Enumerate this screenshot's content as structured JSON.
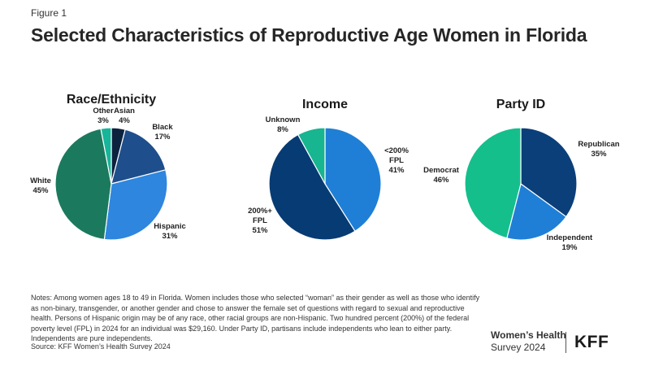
{
  "figure_label": "Figure 1",
  "title": "Selected Characteristics of Reproductive Age Women in Florida",
  "chart_data": [
    {
      "type": "pie",
      "title": "Race/Ethnicity",
      "slices": [
        {
          "name": "Asian",
          "value": 4,
          "label": "4%",
          "color": "#0c2340"
        },
        {
          "name": "Black",
          "value": 17,
          "label": "17%",
          "color": "#1f4e8c"
        },
        {
          "name": "Hispanic",
          "value": 31,
          "label": "31%",
          "color": "#2e86de"
        },
        {
          "name": "White",
          "value": 45,
          "label": "45%",
          "color": "#1b7a5e"
        },
        {
          "name": "Other",
          "value": 3,
          "label": "3%",
          "color": "#17b59a"
        }
      ]
    },
    {
      "type": "pie",
      "title": "Income",
      "slices": [
        {
          "name": "<200% FPL",
          "lines": [
            "<200%",
            "FPL"
          ],
          "value": 41,
          "label": "41%",
          "color": "#1f7fd6"
        },
        {
          "name": "200%+ FPL",
          "lines": [
            "200%+",
            "FPL"
          ],
          "value": 51,
          "label": "51%",
          "color": "#073b73"
        },
        {
          "name": "Unknown",
          "value": 8,
          "label": "8%",
          "color": "#17b590"
        }
      ]
    },
    {
      "type": "pie",
      "title": "Party ID",
      "slices": [
        {
          "name": "Republican",
          "value": 35,
          "label": "35%",
          "color": "#0b3f7a"
        },
        {
          "name": "Independent",
          "value": 19,
          "label": "19%",
          "color": "#1f7fd6"
        },
        {
          "name": "Democrat",
          "value": 46,
          "label": "46%",
          "color": "#14bf8c"
        }
      ]
    }
  ],
  "notes": "Notes: Among women ages 18 to 49 in Florida. Women includes those who selected “woman” as their gender as well as those who identify as non-binary, transgender, or another gender and chose to answer the female set of questions with regard to sexual and reproductive health. Persons of Hispanic origin may be of any race, other racial groups are non-Hispanic. Two hundred percent (200%) of the federal poverty level (FPL) in 2024 for an individual was $29,160. Under Party ID, partisans include independents who lean to either party. Independents are pure independents.",
  "source": "Source: KFF Women’s Health Survey 2024",
  "branding": {
    "survey_name": "Women’s Health",
    "survey_sub": "Survey 2024",
    "logo_text": "KFF"
  }
}
